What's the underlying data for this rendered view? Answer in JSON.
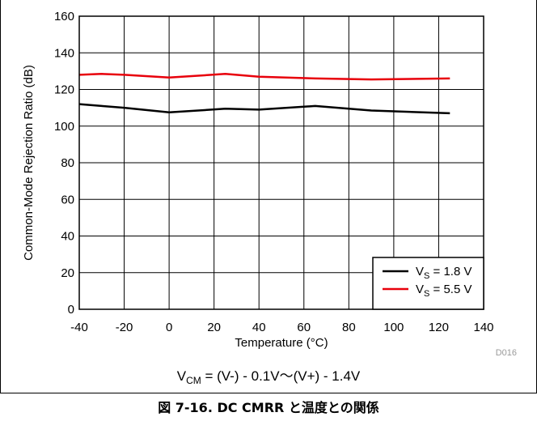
{
  "chart_data": {
    "type": "line",
    "xlabel": "Temperature (°C)",
    "ylabel": "Common-Mode Rejection Ratio (dB)",
    "xlim": [
      -40,
      140
    ],
    "ylim": [
      0,
      160
    ],
    "xticks": [
      -40,
      -20,
      0,
      20,
      40,
      60,
      80,
      100,
      120,
      140
    ],
    "yticks": [
      0,
      20,
      40,
      60,
      80,
      100,
      120,
      140,
      160
    ],
    "grid": true,
    "legend_position": "bottom-right",
    "series": [
      {
        "legend_main": "V",
        "legend_sub": "S",
        "legend_rest": " = 1.8 V",
        "color": "#000000",
        "x": [
          -40,
          -30,
          -20,
          0,
          25,
          40,
          65,
          90,
          125
        ],
        "y": [
          112,
          111,
          110,
          107.5,
          109.5,
          109,
          111,
          108.5,
          107
        ]
      },
      {
        "legend_main": "V",
        "legend_sub": "S",
        "legend_rest": " = 5.5 V",
        "color": "#e8000b",
        "x": [
          -40,
          -30,
          -20,
          0,
          25,
          40,
          65,
          90,
          125
        ],
        "y": [
          128,
          128.5,
          128,
          126.5,
          128.5,
          127,
          126,
          125.5,
          126
        ]
      }
    ],
    "code_label": "D016"
  },
  "formula": {
    "v": "V",
    "sub": "CM",
    "rest": " = (V-) - 0.1V～(V+) - 1.4V"
  },
  "caption": "図 7-16. DC CMRR と温度との関係"
}
